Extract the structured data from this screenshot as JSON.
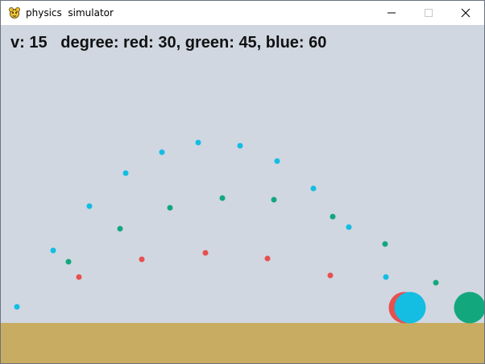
{
  "window": {
    "title": "physics  simulator",
    "app_icon": "pygame-snake-icon",
    "controls": [
      "minimize-icon",
      "maximize-icon",
      "close-icon"
    ]
  },
  "hud": {
    "text": "v: 15   degree: red: 30, green: 45, blue: 60"
  },
  "colors": {
    "sky": "#d0d7e1",
    "ground": "#c8ac61",
    "red": "#e85050",
    "green": "#13a77d",
    "blue": "#14bde2",
    "titlebar": "#ffffff"
  },
  "simulation": {
    "velocity": 15,
    "projectiles": [
      {
        "name": "red",
        "angle_deg": 30
      },
      {
        "name": "green",
        "angle_deg": 45
      },
      {
        "name": "blue",
        "angle_deg": 60
      }
    ]
  }
}
